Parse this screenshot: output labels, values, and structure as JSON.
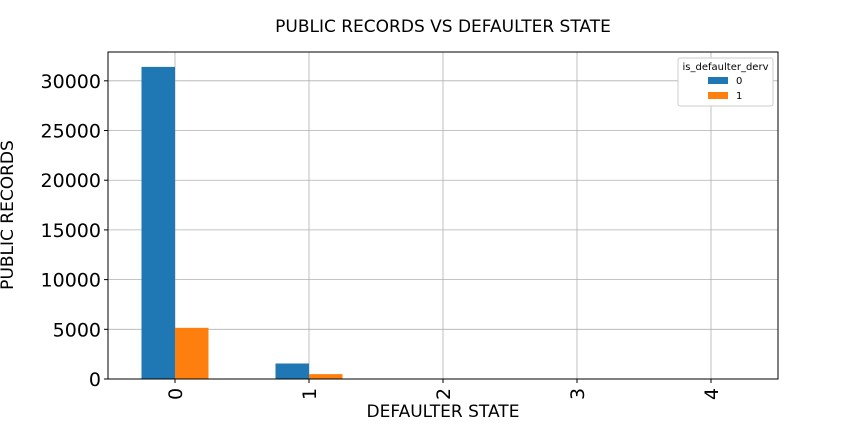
{
  "chart_data": {
    "type": "bar",
    "title": "PUBLIC RECORDS VS DEFAULTER STATE",
    "xlabel": "DEFAULTER STATE",
    "ylabel": "PUBLIC RECORDS",
    "categories": [
      "0",
      "1",
      "2",
      "3",
      "4"
    ],
    "series": [
      {
        "name": "0",
        "color": "#1f77b4",
        "values": [
          31400,
          1560,
          0,
          0,
          0
        ]
      },
      {
        "name": "1",
        "color": "#ff7f0e",
        "values": [
          5150,
          490,
          0,
          0,
          0
        ]
      }
    ],
    "ylim": [
      0,
      32900
    ],
    "yticks": [
      0,
      5000,
      10000,
      15000,
      20000,
      25000,
      30000
    ],
    "grid": true,
    "legend": {
      "title": "is_defaulter_derv",
      "placement": "top-right"
    },
    "xtick_rotation": "vertical"
  }
}
